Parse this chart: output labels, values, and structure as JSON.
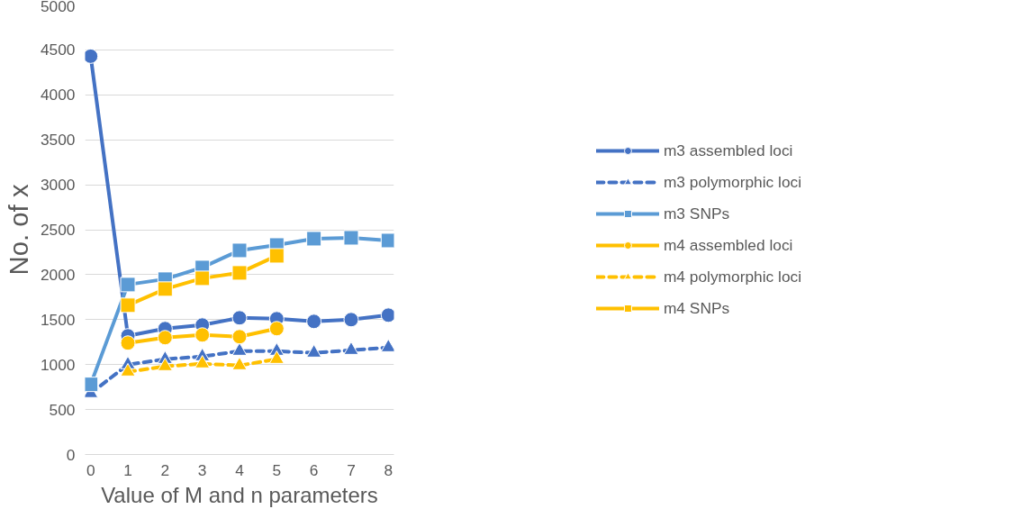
{
  "chart_data": {
    "type": "line",
    "xlabel": "Value of M and n parameters",
    "ylabel": "No. of x",
    "x": [
      0,
      1,
      2,
      3,
      4,
      5,
      6,
      7,
      8
    ],
    "xlim": [
      -0.15,
      8.15
    ],
    "xticks": [
      0,
      1,
      2,
      3,
      4,
      5,
      6,
      7,
      8
    ],
    "ylim": [
      0,
      5000
    ],
    "yticks": [
      0,
      500,
      1000,
      1500,
      2000,
      2500,
      3000,
      3500,
      4000,
      4500,
      5000
    ],
    "grid": "y",
    "legend": "right",
    "series": [
      {
        "name": "m3 assembled loci",
        "color": "#4472c4",
        "marker": "circle",
        "line_style": "solid",
        "values": [
          4430,
          1320,
          1400,
          1440,
          1520,
          1510,
          1480,
          1500,
          1550
        ]
      },
      {
        "name": "m3 polymorphic loci",
        "color": "#4472c4",
        "marker": "triangle",
        "line_style": "dashed",
        "values": [
          680,
          1000,
          1060,
          1090,
          1150,
          1150,
          1130,
          1160,
          1190
        ]
      },
      {
        "name": "m3 SNPs",
        "color": "#5b9bd5",
        "marker": "square",
        "line_style": "solid",
        "values": [
          780,
          1890,
          1950,
          2080,
          2270,
          2330,
          2400,
          2410,
          2380
        ]
      },
      {
        "name": "m4 assembled loci",
        "color": "#ffc000",
        "marker": "circle",
        "line_style": "solid",
        "values": [
          null,
          1240,
          1300,
          1330,
          1310,
          1400,
          null,
          null,
          null
        ]
      },
      {
        "name": "m4 polymorphic loci",
        "color": "#ffc000",
        "marker": "triangle",
        "line_style": "dashed",
        "values": [
          null,
          920,
          980,
          1010,
          990,
          1060,
          null,
          null,
          null
        ]
      },
      {
        "name": "m4 SNPs",
        "color": "#ffc000",
        "marker": "square",
        "line_style": "solid",
        "values": [
          null,
          1660,
          1840,
          1960,
          2020,
          2210,
          null,
          null,
          null
        ]
      }
    ]
  }
}
